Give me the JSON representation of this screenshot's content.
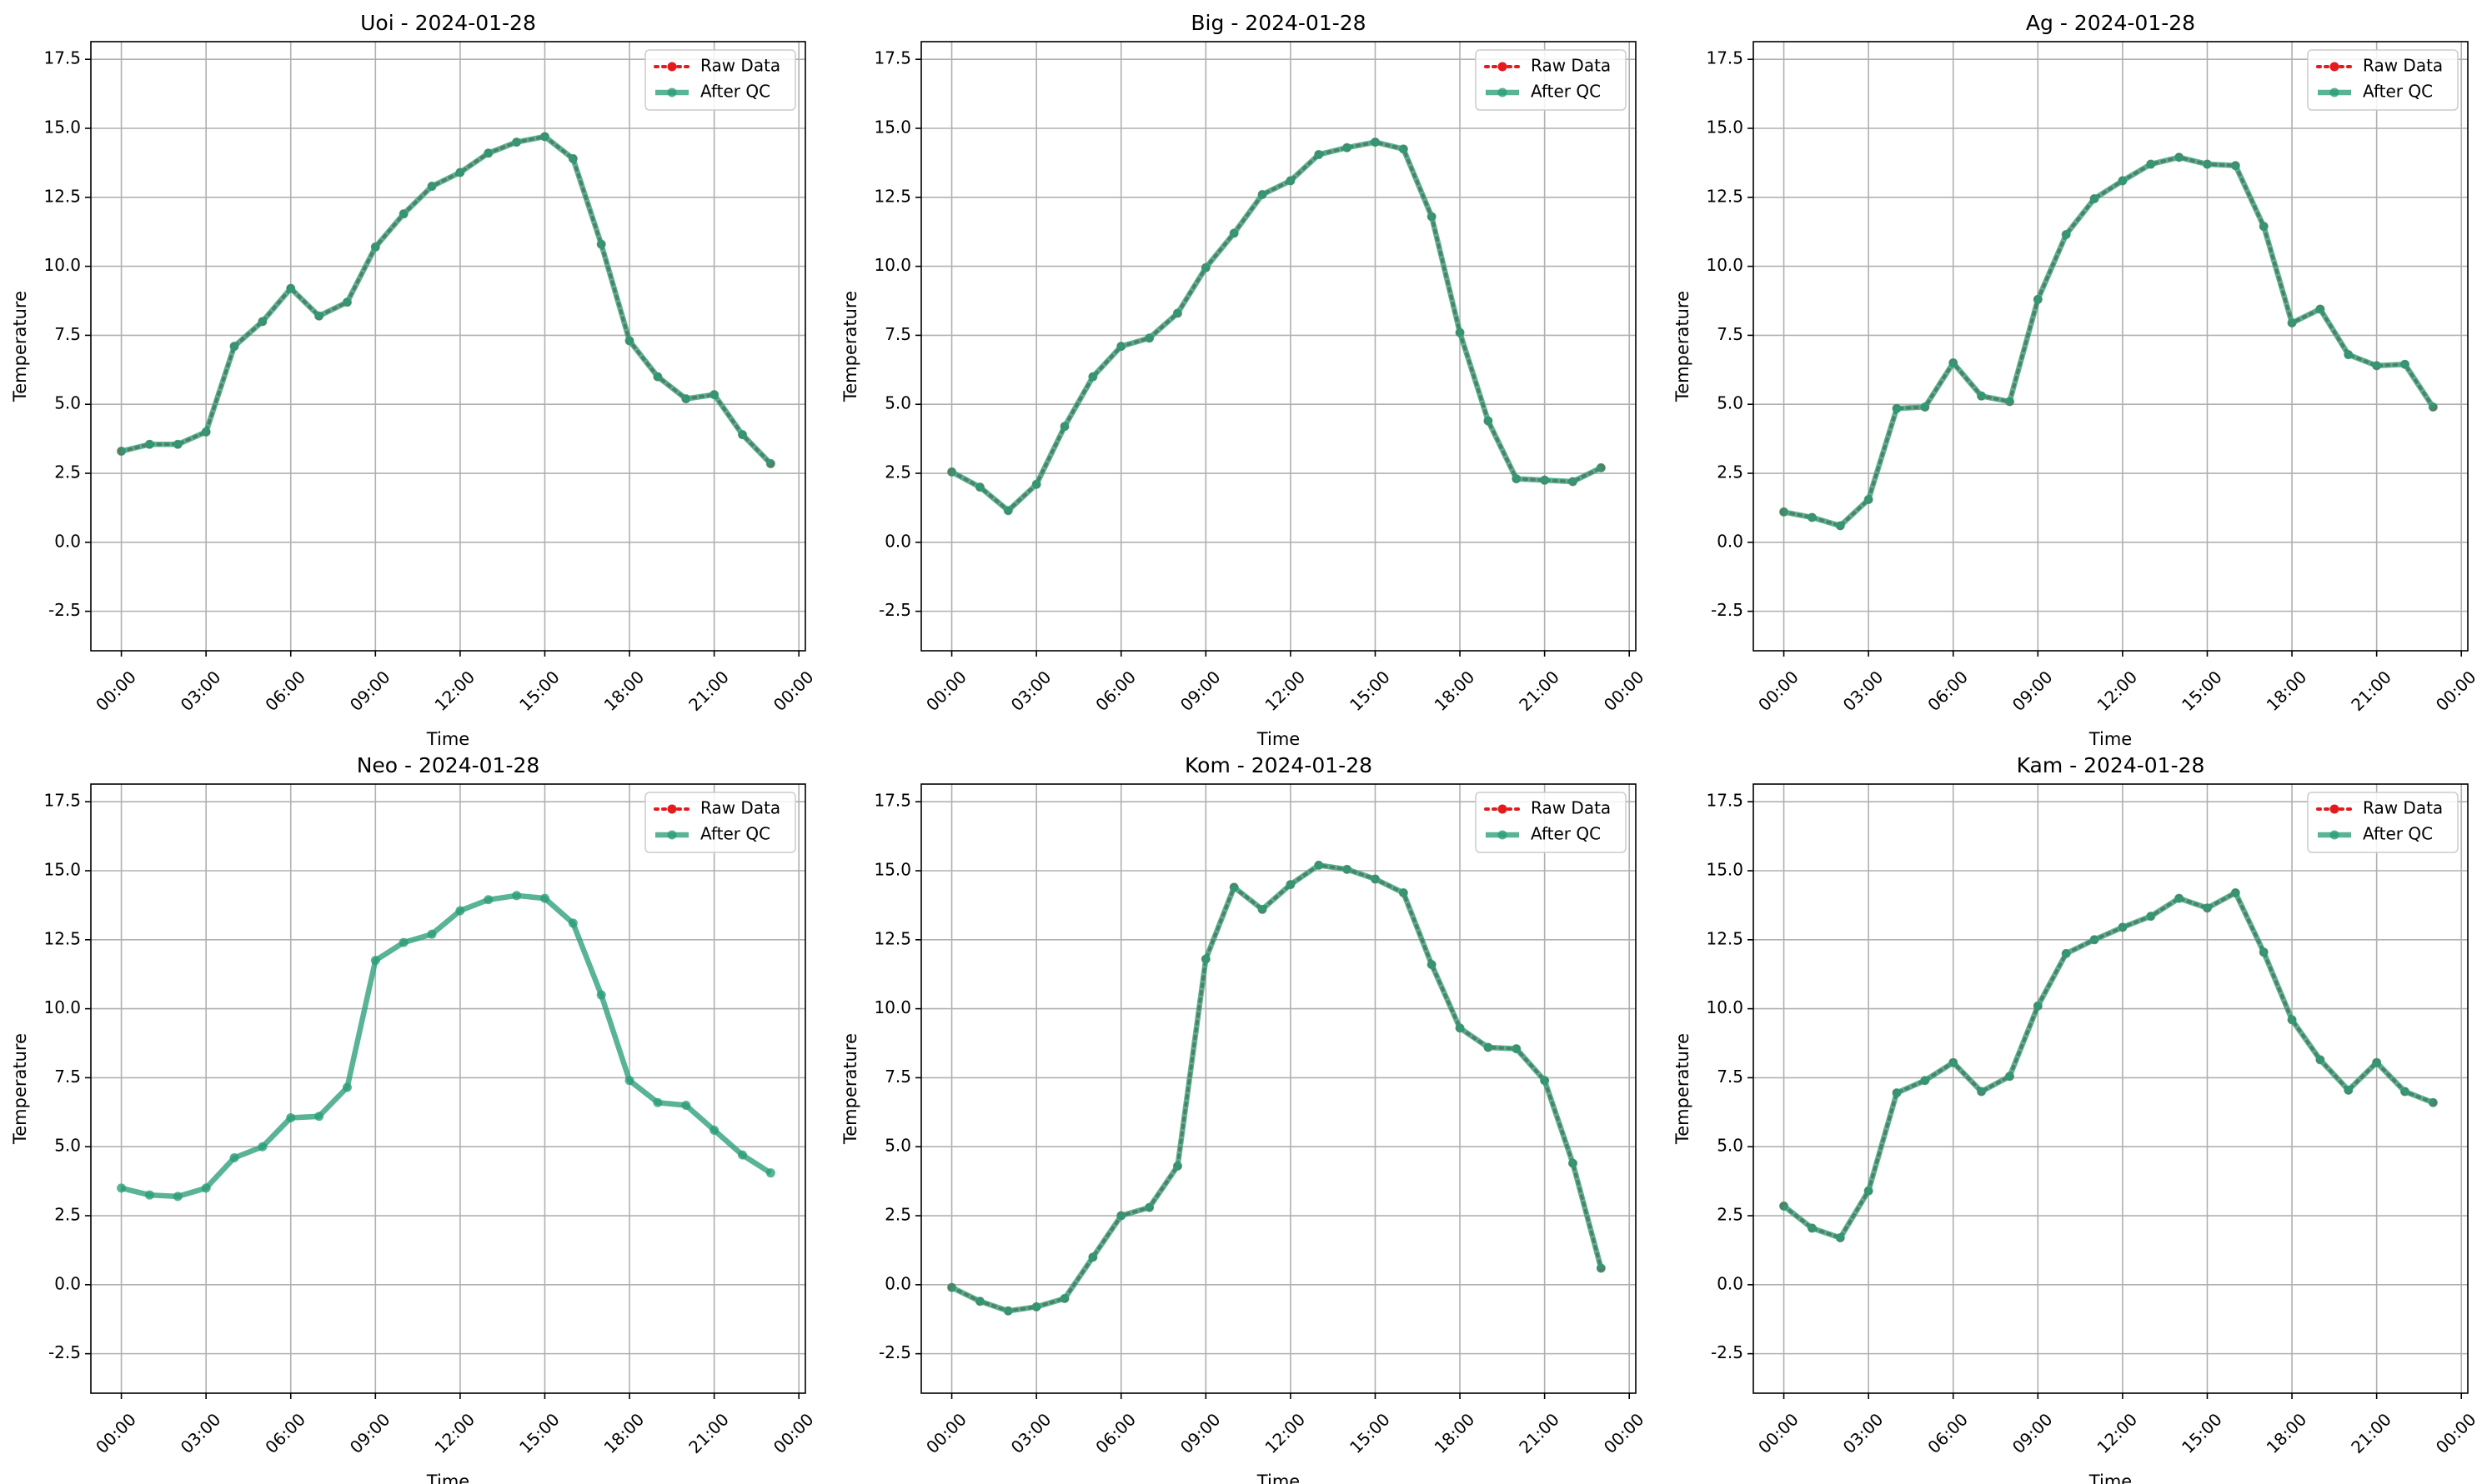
{
  "chart_data": [
    {
      "type": "line",
      "title": "Uoi - 2024-01-28",
      "xlabel": "Time",
      "ylabel": "Temperature",
      "x": [
        0,
        1,
        2,
        3,
        4,
        5,
        6,
        7,
        8,
        9,
        10,
        11,
        12,
        13,
        14,
        15,
        16,
        17,
        18,
        19,
        20,
        21,
        22,
        23
      ],
      "xlim": [
        -1.08,
        24.23
      ],
      "xticks": [
        {
          "value": 0,
          "label": "00:00"
        },
        {
          "value": 3,
          "label": "03:00"
        },
        {
          "value": 6,
          "label": "06:00"
        },
        {
          "value": 9,
          "label": "09:00"
        },
        {
          "value": 12,
          "label": "12:00"
        },
        {
          "value": 15,
          "label": "15:00"
        },
        {
          "value": 18,
          "label": "18:00"
        },
        {
          "value": 21,
          "label": "21:00"
        },
        {
          "value": 24,
          "label": "00:00"
        }
      ],
      "ylim": [
        -3.93,
        18.14
      ],
      "yticks": [
        -2.5,
        {
          "value": 0,
          "label": "0.0"
        },
        2.5,
        {
          "value": 5,
          "label": "5.0"
        },
        7.5,
        {
          "value": 10,
          "label": "10.0"
        },
        12.5,
        {
          "value": 15,
          "label": "15.0"
        },
        17.5
      ],
      "grid": true,
      "legend": "upper right",
      "series": [
        {
          "name": "Raw Data",
          "color": "#e41a1c",
          "values": [
            3.3,
            3.55,
            3.55,
            4.0,
            7.1,
            8.0,
            9.2,
            8.2,
            8.7,
            10.7,
            11.9,
            12.9,
            13.4,
            14.1,
            14.5,
            14.7,
            13.9,
            10.8,
            7.3,
            6.0,
            5.2,
            5.35,
            3.9,
            2.85
          ]
        },
        {
          "name": "After QC",
          "color": "#2a9d78",
          "values": [
            3.3,
            3.55,
            3.55,
            4.0,
            7.1,
            8.0,
            9.2,
            8.2,
            8.7,
            10.7,
            11.9,
            12.9,
            13.4,
            14.1,
            14.5,
            14.7,
            13.9,
            10.8,
            7.3,
            6.0,
            5.2,
            5.35,
            3.9,
            2.85
          ]
        }
      ]
    },
    {
      "type": "line",
      "title": "Big - 2024-01-28",
      "xlabel": "Time",
      "ylabel": "Temperature",
      "x": [
        0,
        1,
        2,
        3,
        4,
        5,
        6,
        7,
        8,
        9,
        10,
        11,
        12,
        13,
        14,
        15,
        16,
        17,
        18,
        19,
        20,
        21,
        22,
        23
      ],
      "xlim": [
        -1.08,
        24.23
      ],
      "xticks": [
        {
          "value": 0,
          "label": "00:00"
        },
        {
          "value": 3,
          "label": "03:00"
        },
        {
          "value": 6,
          "label": "06:00"
        },
        {
          "value": 9,
          "label": "09:00"
        },
        {
          "value": 12,
          "label": "12:00"
        },
        {
          "value": 15,
          "label": "15:00"
        },
        {
          "value": 18,
          "label": "18:00"
        },
        {
          "value": 21,
          "label": "21:00"
        },
        {
          "value": 24,
          "label": "00:00"
        }
      ],
      "ylim": [
        -3.93,
        18.14
      ],
      "yticks": [
        -2.5,
        {
          "value": 0,
          "label": "0.0"
        },
        2.5,
        {
          "value": 5,
          "label": "5.0"
        },
        7.5,
        {
          "value": 10,
          "label": "10.0"
        },
        12.5,
        {
          "value": 15,
          "label": "15.0"
        },
        17.5
      ],
      "grid": true,
      "legend": "upper right",
      "series": [
        {
          "name": "Raw Data",
          "color": "#e41a1c",
          "values": [
            2.55,
            2.0,
            1.15,
            2.1,
            4.2,
            6.0,
            7.1,
            7.4,
            8.3,
            9.95,
            11.2,
            12.6,
            13.1,
            14.05,
            14.3,
            14.5,
            14.25,
            11.8,
            7.6,
            4.4,
            2.3,
            2.25,
            2.2,
            2.7
          ]
        },
        {
          "name": "After QC",
          "color": "#2a9d78",
          "values": [
            2.55,
            2.0,
            1.15,
            2.1,
            4.2,
            6.0,
            7.1,
            7.4,
            8.3,
            9.95,
            11.2,
            12.6,
            13.1,
            14.05,
            14.3,
            14.5,
            14.25,
            11.8,
            7.6,
            4.4,
            2.3,
            2.25,
            2.2,
            2.7
          ]
        }
      ]
    },
    {
      "type": "line",
      "title": "Ag - 2024-01-28",
      "xlabel": "Time",
      "ylabel": "Temperature",
      "x": [
        0,
        1,
        2,
        3,
        4,
        5,
        6,
        7,
        8,
        9,
        10,
        11,
        12,
        13,
        14,
        15,
        16,
        17,
        18,
        19,
        20,
        21,
        22,
        23
      ],
      "xlim": [
        -1.08,
        24.23
      ],
      "xticks": [
        {
          "value": 0,
          "label": "00:00"
        },
        {
          "value": 3,
          "label": "03:00"
        },
        {
          "value": 6,
          "label": "06:00"
        },
        {
          "value": 9,
          "label": "09:00"
        },
        {
          "value": 12,
          "label": "12:00"
        },
        {
          "value": 15,
          "label": "15:00"
        },
        {
          "value": 18,
          "label": "18:00"
        },
        {
          "value": 21,
          "label": "21:00"
        },
        {
          "value": 24,
          "label": "00:00"
        }
      ],
      "ylim": [
        -3.93,
        18.14
      ],
      "yticks": [
        -2.5,
        {
          "value": 0,
          "label": "0.0"
        },
        2.5,
        {
          "value": 5,
          "label": "5.0"
        },
        7.5,
        {
          "value": 10,
          "label": "10.0"
        },
        12.5,
        {
          "value": 15,
          "label": "15.0"
        },
        17.5
      ],
      "grid": true,
      "legend": "upper right",
      "series": [
        {
          "name": "Raw Data",
          "color": "#e41a1c",
          "values": [
            1.1,
            0.9,
            0.6,
            1.55,
            4.85,
            4.9,
            6.5,
            5.3,
            5.1,
            8.8,
            11.15,
            12.45,
            13.1,
            13.7,
            13.95,
            13.7,
            13.65,
            11.45,
            7.95,
            8.45,
            6.8,
            6.4,
            6.45,
            4.9
          ]
        },
        {
          "name": "After QC",
          "color": "#2a9d78",
          "values": [
            1.1,
            0.9,
            0.6,
            1.55,
            4.85,
            4.9,
            6.5,
            5.3,
            5.1,
            8.8,
            11.15,
            12.45,
            13.1,
            13.7,
            13.95,
            13.7,
            13.65,
            11.45,
            7.95,
            8.45,
            6.8,
            6.4,
            6.45,
            4.9
          ]
        }
      ]
    },
    {
      "type": "line",
      "title": "Neo - 2024-01-28",
      "xlabel": "Time",
      "ylabel": "Temperature",
      "x": [
        0,
        1,
        2,
        3,
        4,
        5,
        6,
        7,
        8,
        9,
        10,
        11,
        12,
        13,
        14,
        15,
        16,
        17,
        18,
        19,
        20,
        21,
        22,
        23
      ],
      "xlim": [
        -1.08,
        24.23
      ],
      "xticks": [
        {
          "value": 0,
          "label": "00:00"
        },
        {
          "value": 3,
          "label": "03:00"
        },
        {
          "value": 6,
          "label": "06:00"
        },
        {
          "value": 9,
          "label": "09:00"
        },
        {
          "value": 12,
          "label": "12:00"
        },
        {
          "value": 15,
          "label": "15:00"
        },
        {
          "value": 18,
          "label": "18:00"
        },
        {
          "value": 21,
          "label": "21:00"
        },
        {
          "value": 24,
          "label": "00:00"
        }
      ],
      "ylim": [
        -3.93,
        18.14
      ],
      "yticks": [
        -2.5,
        {
          "value": 0,
          "label": "0.0"
        },
        2.5,
        {
          "value": 5,
          "label": "5.0"
        },
        7.5,
        {
          "value": 10,
          "label": "10.0"
        },
        12.5,
        {
          "value": 15,
          "label": "15.0"
        },
        17.5
      ],
      "grid": true,
      "legend": "upper right",
      "series": [
        {
          "name": "Raw Data",
          "color": "#e41a1c",
          "values": [
            null,
            null,
            null,
            null,
            null,
            null,
            null,
            null,
            null,
            null,
            null,
            null,
            null,
            null,
            null,
            null,
            null,
            null,
            null,
            null,
            null,
            null,
            null,
            null
          ]
        },
        {
          "name": "After QC",
          "color": "#2a9d78",
          "values": [
            3.5,
            3.25,
            3.2,
            3.5,
            4.6,
            5.0,
            6.05,
            6.1,
            7.15,
            11.75,
            12.4,
            12.7,
            13.55,
            13.95,
            14.1,
            14.0,
            13.1,
            10.5,
            7.4,
            6.6,
            6.5,
            5.6,
            4.7,
            4.05
          ]
        }
      ]
    },
    {
      "type": "line",
      "title": "Kom - 2024-01-28",
      "xlabel": "Time",
      "ylabel": "Temperature",
      "x": [
        0,
        1,
        2,
        3,
        4,
        5,
        6,
        7,
        8,
        9,
        10,
        11,
        12,
        13,
        14,
        15,
        16,
        17,
        18,
        19,
        20,
        21,
        22,
        23
      ],
      "xlim": [
        -1.08,
        24.23
      ],
      "xticks": [
        {
          "value": 0,
          "label": "00:00"
        },
        {
          "value": 3,
          "label": "03:00"
        },
        {
          "value": 6,
          "label": "06:00"
        },
        {
          "value": 9,
          "label": "09:00"
        },
        {
          "value": 12,
          "label": "12:00"
        },
        {
          "value": 15,
          "label": "15:00"
        },
        {
          "value": 18,
          "label": "18:00"
        },
        {
          "value": 21,
          "label": "21:00"
        },
        {
          "value": 24,
          "label": "00:00"
        }
      ],
      "ylim": [
        -3.93,
        18.14
      ],
      "yticks": [
        -2.5,
        {
          "value": 0,
          "label": "0.0"
        },
        2.5,
        {
          "value": 5,
          "label": "5.0"
        },
        7.5,
        {
          "value": 10,
          "label": "10.0"
        },
        12.5,
        {
          "value": 15,
          "label": "15.0"
        },
        17.5
      ],
      "grid": true,
      "legend": "upper right",
      "series": [
        {
          "name": "Raw Data",
          "color": "#e41a1c",
          "values": [
            -0.1,
            -0.6,
            -0.95,
            -0.8,
            -0.5,
            1.0,
            2.5,
            2.8,
            4.3,
            11.8,
            14.4,
            13.6,
            14.5,
            15.2,
            15.05,
            14.7,
            14.2,
            11.6,
            9.3,
            8.6,
            8.55,
            7.4,
            4.4,
            0.6
          ]
        },
        {
          "name": "After QC",
          "color": "#2a9d78",
          "values": [
            -0.1,
            -0.6,
            -0.95,
            -0.8,
            -0.5,
            1.0,
            2.5,
            2.8,
            4.3,
            11.8,
            14.4,
            13.6,
            14.5,
            15.2,
            15.05,
            14.7,
            14.2,
            11.6,
            9.3,
            8.6,
            8.55,
            7.4,
            4.4,
            0.6
          ]
        }
      ]
    },
    {
      "type": "line",
      "title": "Kam - 2024-01-28",
      "xlabel": "Time",
      "ylabel": "Temperature",
      "x": [
        0,
        1,
        2,
        3,
        4,
        5,
        6,
        7,
        8,
        9,
        10,
        11,
        12,
        13,
        14,
        15,
        16,
        17,
        18,
        19,
        20,
        21,
        22,
        23
      ],
      "xlim": [
        -1.08,
        24.23
      ],
      "xticks": [
        {
          "value": 0,
          "label": "00:00"
        },
        {
          "value": 3,
          "label": "03:00"
        },
        {
          "value": 6,
          "label": "06:00"
        },
        {
          "value": 9,
          "label": "09:00"
        },
        {
          "value": 12,
          "label": "12:00"
        },
        {
          "value": 15,
          "label": "15:00"
        },
        {
          "value": 18,
          "label": "18:00"
        },
        {
          "value": 21,
          "label": "21:00"
        },
        {
          "value": 24,
          "label": "00:00"
        }
      ],
      "ylim": [
        -3.93,
        18.14
      ],
      "yticks": [
        -2.5,
        {
          "value": 0,
          "label": "0.0"
        },
        2.5,
        {
          "value": 5,
          "label": "5.0"
        },
        7.5,
        {
          "value": 10,
          "label": "10.0"
        },
        12.5,
        {
          "value": 15,
          "label": "15.0"
        },
        17.5
      ],
      "grid": true,
      "legend": "upper right",
      "series": [
        {
          "name": "Raw Data",
          "color": "#e41a1c",
          "values": [
            2.85,
            2.05,
            1.7,
            3.4,
            6.95,
            7.4,
            8.05,
            7.0,
            7.55,
            10.1,
            12.0,
            12.5,
            12.95,
            13.35,
            14.0,
            13.65,
            14.2,
            12.05,
            9.6,
            8.15,
            7.05,
            8.05,
            7.0,
            6.6
          ]
        },
        {
          "name": "After QC",
          "color": "#2a9d78",
          "values": [
            2.85,
            2.05,
            1.7,
            3.4,
            6.95,
            7.4,
            8.05,
            7.0,
            7.55,
            10.1,
            12.0,
            12.5,
            12.95,
            13.35,
            14.0,
            13.65,
            14.2,
            12.05,
            9.6,
            8.15,
            7.05,
            8.05,
            7.0,
            6.6
          ]
        }
      ]
    }
  ]
}
